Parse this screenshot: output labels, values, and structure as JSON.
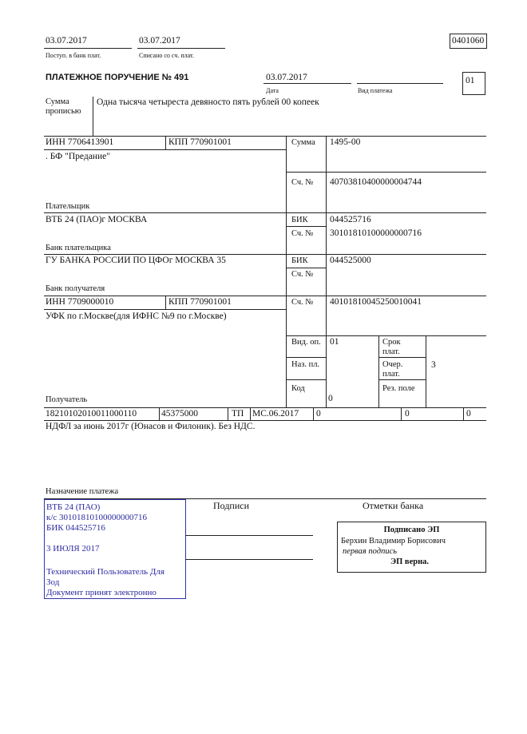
{
  "header": {
    "received_date": "03.07.2017",
    "received_label": "Поступ. в банк плат.",
    "debited_date": "03.07.2017",
    "debited_label": "Списано со сч. плат.",
    "form_code": "0401060"
  },
  "order": {
    "title": "ПЛАТЕЖНОЕ ПОРУЧЕНИЕ № 491",
    "date": "03.07.2017",
    "date_label": "Дата",
    "payment_type_label": "Вид платежа",
    "payment_type": "",
    "status_code": "01"
  },
  "amount_words": {
    "label_line1": "Сумма",
    "label_line2": "прописью",
    "value": "Одна тысяча четыреста девяносто пять рублей 00 копеек"
  },
  "payer": {
    "inn": "ИНН 7706413901",
    "kpp": "КПП 770901001",
    "name": ". БФ \"Предание\"",
    "label": "Плательщик",
    "bank": "ВТБ 24 (ПАО)г МОСКВА",
    "bank_label": "Банк плательщика"
  },
  "right": {
    "sum_label": "Сумма",
    "sum": "1495-00",
    "acc_label": "Сч. №",
    "payer_account": "40703810400000004744",
    "bik_label": "БИК",
    "payer_bik": "044525716",
    "payer_corr": "30101810100000000716",
    "payee_bik": "044525000",
    "payee_corr": "",
    "payee_account": "40101810045250010041"
  },
  "payee": {
    "bank": "ГУ БАНКА РОССИИ ПО ЦФОг МОСКВА 35",
    "bank_label": "Банк получателя",
    "inn": "ИНН 7709000010",
    "kpp": "КПП 770901001",
    "name": "УФК по г.Москве(для ИФНС №9 по г.Москве)",
    "label": "Получатель"
  },
  "codes": {
    "op_type_label": "Вид. оп.",
    "op_type": "01",
    "purpose_label": "Наз. пл.",
    "code_label": "Код",
    "code": "0",
    "term_label1": "Срок",
    "term_label2": "плат.",
    "priority_label1": "Очер.",
    "priority_label2": "плат.",
    "priority": "3",
    "reserve_label": "Рез. поле"
  },
  "tax_row": [
    "18210102010011000110",
    "45375000",
    "ТП",
    "МС.06.2017",
    "0",
    "0",
    "0"
  ],
  "purpose": {
    "text": "НДФЛ за июнь 2017г (Юнасов и Филоник). Без НДС.",
    "label": "Назначение платежа"
  },
  "bank_stamp": {
    "lines": [
      "ВТБ 24 (ПАО)",
      "к/с 30101810100000000716",
      "БИК 044525716",
      "3 ИЮЛЯ 2017",
      "Технический Пользователь Для",
      "Зод",
      "Документ принят электронно"
    ],
    "color": "#2a2aa0"
  },
  "signatures": {
    "label": "Подписи",
    "bank_marks_label": "Отметки банка"
  },
  "esign": {
    "title": "Подписано ЭП",
    "signer": "Берхин Владимир Борисович",
    "role": "первая подпись",
    "verified": "ЭП верна."
  }
}
